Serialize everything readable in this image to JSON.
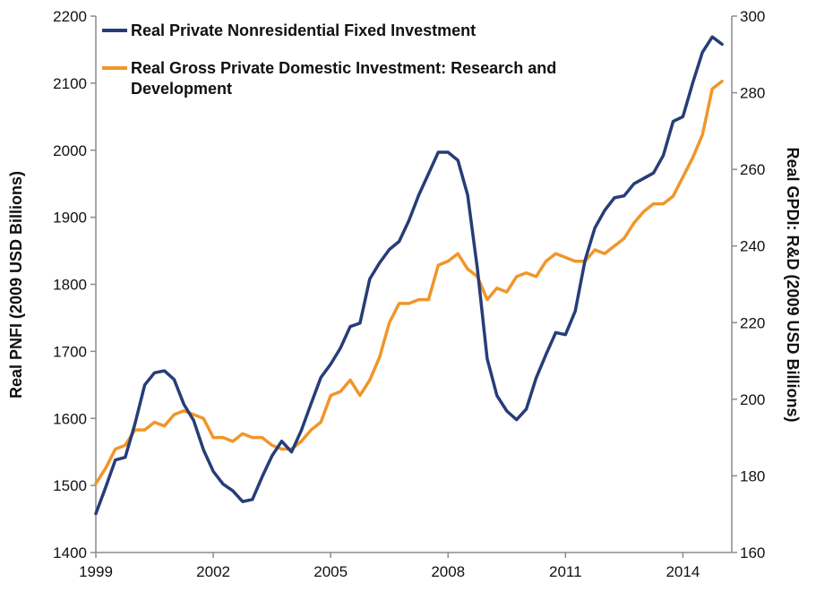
{
  "chart_data": {
    "type": "line",
    "xlabel": "",
    "ylabel": "Real PNFI (2009 USD Billions)",
    "y2label": "Real GPDI: R&D (2009 USD Billions)",
    "xlim": [
      1999,
      2015.25
    ],
    "ylim": [
      1400,
      2200
    ],
    "y2lim": [
      160,
      300
    ],
    "x_ticks": [
      "1999",
      "2002",
      "2005",
      "2008",
      "2011",
      "2014"
    ],
    "y_ticks": [
      "1400",
      "1500",
      "1600",
      "1700",
      "1800",
      "1900",
      "2000",
      "2100",
      "2200"
    ],
    "y2_ticks": [
      "160",
      "180",
      "200",
      "220",
      "240",
      "260",
      "280",
      "300"
    ],
    "grid": false,
    "legend_position": "top-left",
    "colors": {
      "pnfi": "#273d78",
      "rd": "#f0962a"
    },
    "series": [
      {
        "key": "pnfi",
        "name": "Real Private Nonresidential Fixed Investment",
        "axis": "left",
        "x": [
          1999.0,
          1999.25,
          1999.5,
          1999.75,
          2000.0,
          2000.25,
          2000.5,
          2000.75,
          2001.0,
          2001.25,
          2001.5,
          2001.75,
          2002.0,
          2002.25,
          2002.5,
          2002.75,
          2003.0,
          2003.25,
          2003.5,
          2003.75,
          2004.0,
          2004.25,
          2004.5,
          2004.75,
          2005.0,
          2005.25,
          2005.5,
          2005.75,
          2006.0,
          2006.25,
          2006.5,
          2006.75,
          2007.0,
          2007.25,
          2007.5,
          2007.75,
          2008.0,
          2008.25,
          2008.5,
          2008.75,
          2009.0,
          2009.25,
          2009.5,
          2009.75,
          2010.0,
          2010.25,
          2010.5,
          2010.75,
          2011.0,
          2011.25,
          2011.5,
          2011.75,
          2012.0,
          2012.25,
          2012.5,
          2012.75,
          2013.0,
          2013.25,
          2013.5,
          2013.75,
          2014.0,
          2014.25,
          2014.5,
          2014.75,
          2015.0
        ],
        "values": [
          1458,
          1497,
          1538,
          1542,
          1592,
          1650,
          1668,
          1671,
          1658,
          1621,
          1597,
          1553,
          1521,
          1502,
          1492,
          1476,
          1479,
          1513,
          1544,
          1566,
          1550,
          1582,
          1622,
          1661,
          1681,
          1705,
          1737,
          1742,
          1808,
          1832,
          1852,
          1864,
          1895,
          1933,
          1965,
          1997,
          1997,
          1985,
          1933,
          1823,
          1689,
          1634,
          1611,
          1598,
          1614,
          1660,
          1695,
          1728,
          1725,
          1760,
          1836,
          1884,
          1910,
          1929,
          1932,
          1950,
          1958,
          1966,
          1992,
          2043,
          2050,
          2100,
          2146,
          2169,
          2158
        ]
      },
      {
        "key": "rd",
        "name": "Real Gross Private Domestic Investment: Research and Development",
        "axis": "right",
        "x": [
          1999.0,
          1999.25,
          1999.5,
          1999.75,
          2000.0,
          2000.25,
          2000.5,
          2000.75,
          2001.0,
          2001.25,
          2001.5,
          2001.75,
          2002.0,
          2002.25,
          2002.5,
          2002.75,
          2003.0,
          2003.25,
          2003.5,
          2003.75,
          2004.0,
          2004.25,
          2004.5,
          2004.75,
          2005.0,
          2005.25,
          2005.5,
          2005.75,
          2006.0,
          2006.25,
          2006.5,
          2006.75,
          2007.0,
          2007.25,
          2007.5,
          2007.75,
          2008.0,
          2008.25,
          2008.5,
          2008.75,
          2009.0,
          2009.25,
          2009.5,
          2009.75,
          2010.0,
          2010.25,
          2010.5,
          2010.75,
          2011.0,
          2011.25,
          2011.5,
          2011.75,
          2012.0,
          2012.25,
          2012.5,
          2012.75,
          2013.0,
          2013.25,
          2013.5,
          2013.75,
          2014.0,
          2014.25,
          2014.5,
          2014.75,
          2015.0
        ],
        "values": [
          178,
          182,
          187,
          188,
          192,
          192,
          194,
          193,
          196,
          197,
          196,
          195,
          190,
          190,
          189,
          191,
          190,
          190,
          188,
          187,
          187,
          189,
          192,
          194,
          201,
          202,
          205,
          201,
          205,
          211,
          220,
          225,
          225,
          226,
          226,
          235,
          236,
          238,
          234,
          232,
          226,
          229,
          228,
          232,
          233,
          232,
          236,
          238,
          237,
          236,
          236,
          239,
          238,
          240,
          242,
          246,
          249,
          251,
          251,
          253,
          258,
          263,
          269,
          281,
          283
        ]
      }
    ]
  }
}
